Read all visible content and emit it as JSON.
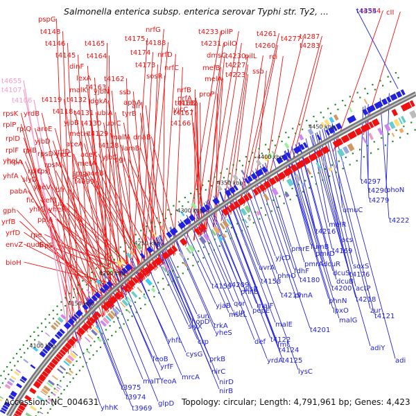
{
  "title": "Salmonella enterica subsp. enterica serovar Typhi str. Ty2, ...",
  "footer": {
    "accession": "Accession: NC_004631",
    "stats": "Topology: circular; Length: 4,791,961 bp; Genes: 4,423"
  },
  "colors": {
    "forward": "#ee1111",
    "reverse": "#2222dd",
    "pink": "#f2a0cc",
    "backbone": "#777777",
    "ticks": "#228822"
  },
  "scale_labels": [
    "4100 kbp",
    "4150 kbp",
    "4200 kbp",
    "4250 kbp",
    "4300 kbp",
    "4350 kbp",
    "4400 kbp",
    "4450 kbp"
  ],
  "forward_genes": [
    "pspG",
    "t4148",
    "t4146",
    "t4145",
    "t4165",
    "t4164",
    "t4175",
    "nrfG",
    "t4188",
    "t4174",
    "nrfD",
    "t4173",
    "nrfC",
    "sosR",
    "t4233",
    "pilP",
    "t4231",
    "pilO",
    "t4261",
    "t4260",
    "t4277",
    "t4287",
    "t4283",
    "t4354",
    "cII",
    "dmsC",
    "t4230",
    "pilL",
    "rci",
    "t4227",
    "t4223",
    "ssb",
    "melB",
    "melA",
    "dinF",
    "lexA",
    "t4163",
    "t4162",
    "malK",
    "yjbN",
    "t4132",
    "dgkA",
    "ssb",
    "t4119",
    "t4118",
    "t4131",
    "aphA",
    "yjcC",
    "nrfB",
    "nrfA",
    "t4168",
    "t4167",
    "t4182",
    "proP",
    "ubiA",
    "tyrB",
    "alr",
    "t4166",
    "yjbB",
    "t4130",
    "ubiC",
    "rpsK",
    "yrdB",
    "rplP",
    "rplQ",
    "aroE",
    "metH",
    "t4129",
    "malM",
    "dnaB",
    "rplD",
    "yjbD",
    "t4128",
    "lamB",
    "rplF",
    "rplB",
    "yrdD",
    "aceA",
    "yheL",
    "rpsD",
    "yrdC",
    "aceK",
    "yjbC",
    "pgi",
    "fkpA",
    "rpsM",
    "metA",
    "yhfA",
    "rplC",
    "smg",
    "t4099",
    "slyD",
    "rpsJ",
    "secY",
    "aceB",
    "pabA",
    "yheV",
    "bfr",
    "fic",
    "kefB",
    "tuf",
    "yhfG",
    "yheR",
    "gph",
    "ppiA",
    "yrfB",
    "rpe",
    "yrfD",
    "nudE",
    "trpS",
    "envZ",
    "bioH"
  ],
  "pink_genes": [
    "t4655",
    "t4107",
    "t4106"
  ],
  "reverse_genes": [
    "t4354",
    "t4279",
    "t4297",
    "t4290",
    "phoN",
    "umuC",
    "t4222",
    "melR",
    "t4216",
    "acs",
    "pmrE",
    "fumB",
    "t4169",
    "yjcD",
    "pmrD",
    "dcuR",
    "soxS",
    "fdhF",
    "pmrA",
    "dcuS",
    "t4176",
    "phnO",
    "dcuB",
    "actP",
    "t4180",
    "t4200",
    "t4218",
    "phnN",
    "uvrA",
    "t4158",
    "lpxO",
    "t4209",
    "plsB",
    "zur",
    "phnB",
    "t4219",
    "malG",
    "t4159",
    "phnA",
    "t4121",
    "qor",
    "malF",
    "t4201",
    "yjaB",
    "iclR",
    "adiY",
    "sun",
    "mscL",
    "pepE",
    "malE",
    "adi",
    "hopD",
    "trkA",
    "t4122",
    "slyX",
    "fmt",
    "crp",
    "yheS",
    "def",
    "t4124",
    "yhfL",
    "cysG",
    "prkB",
    "yrdA",
    "t4125",
    "feoB",
    "nirC",
    "lysC",
    "yrfF",
    "mrcA",
    "nirD",
    "malT",
    "feoA",
    "nirB",
    "t3975",
    "t3974",
    "glpD",
    "yhhK",
    "t3969"
  ]
}
